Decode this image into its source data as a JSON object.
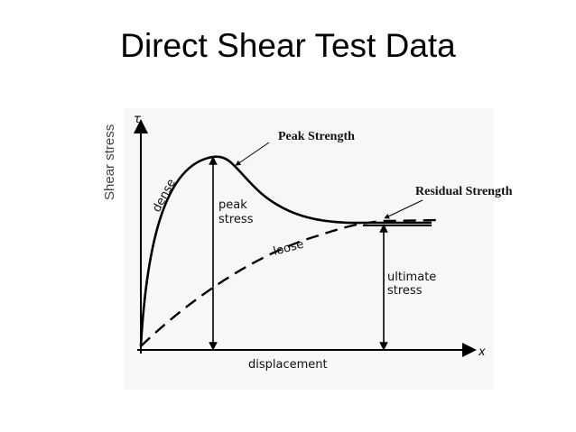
{
  "title": "Direct Shear Test Data",
  "y_axis_side_label": "Shear stress",
  "axis": {
    "y_symbol": "τ",
    "x_symbol": "x",
    "x_label": "displacement"
  },
  "curves": {
    "dense": "dense",
    "loose": "loose"
  },
  "annotations": {
    "peak_stress": [
      "peak",
      "stress"
    ],
    "ultimate_stress": [
      "ultimate",
      "stress"
    ],
    "peak_strength": "Peak Strength",
    "residual_strength": "Residual Strength"
  },
  "colors": {
    "ink": "#000000",
    "paper": "#ffffff",
    "figure_bg": "#f7f7f5"
  }
}
